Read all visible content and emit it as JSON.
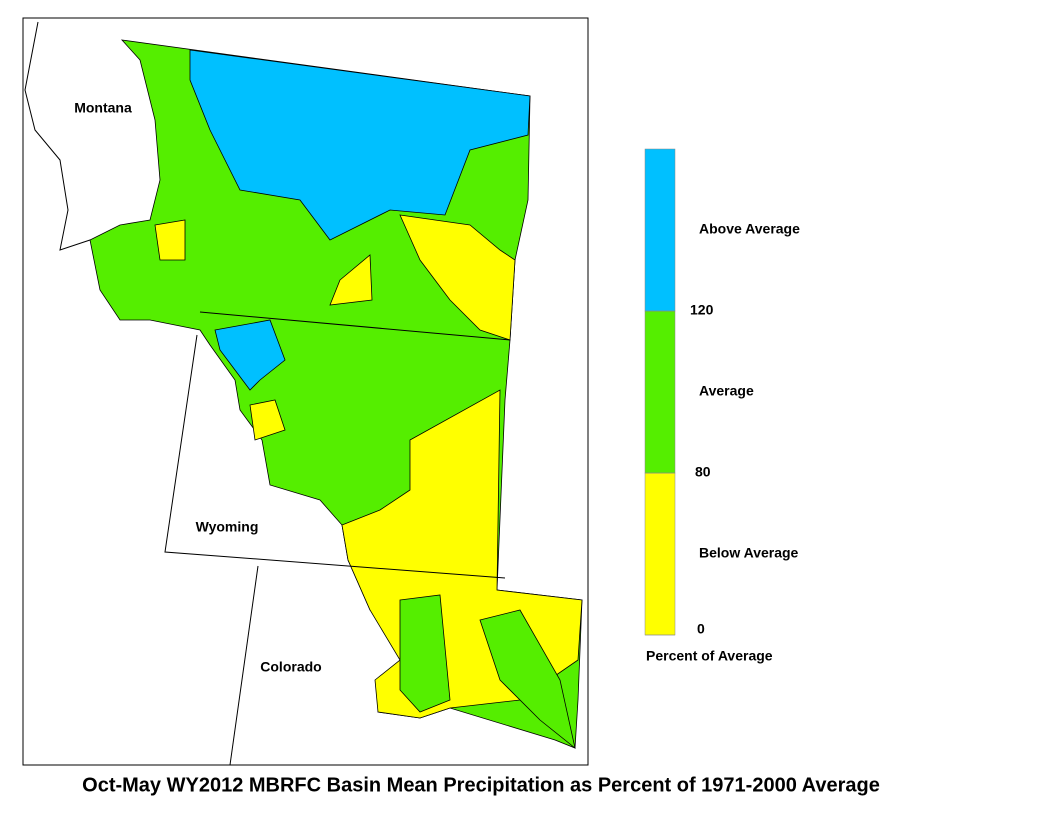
{
  "map": {
    "state_labels": [
      "Montana",
      "Wyoming",
      "Colorado"
    ],
    "legend": {
      "title": "Percent of Average",
      "ticks": [
        0,
        80,
        120
      ],
      "classes": [
        {
          "label": "Below Average",
          "color": "#ffff00"
        },
        {
          "label": "Average",
          "color": "#55ee00"
        },
        {
          "label": "Above Average",
          "color": "#00c0ff"
        }
      ]
    },
    "title": "Oct-May WY2012 MBRFC Basin Mean Precipitation as Percent of 1971-2000 Average"
  }
}
